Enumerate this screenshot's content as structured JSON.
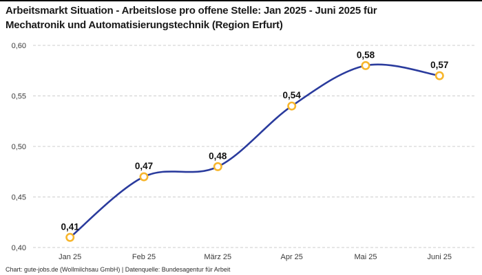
{
  "page": {
    "title_line1": "Arbeitsmarkt Situation - Arbeitslose pro offene Stelle: Jan 2025 - Juni 2025 für",
    "title_line2": "Mechatronik und Automatisierungstechnik (Region Erfurt)",
    "footer": "Chart: gute-jobs.de (Wollmilchsau GmbH) | Datenquelle: Bundesagentur für Arbeit"
  },
  "chart_data": {
    "type": "line",
    "title": "Arbeitsmarkt Situation - Arbeitslose pro offene Stelle: Jan 2025 - Juni 2025 für Mechatronik und Automatisierungstechnik (Region Erfurt)",
    "categories": [
      "Jan 25",
      "Feb 25",
      "März 25",
      "Apr 25",
      "Mai 25",
      "Juni 25"
    ],
    "values": [
      0.41,
      0.47,
      0.48,
      0.54,
      0.58,
      0.57
    ],
    "value_labels": [
      "0,41",
      "0,47",
      "0,48",
      "0,54",
      "0,58",
      "0,57"
    ],
    "y_ticks": [
      {
        "value": 0.6,
        "label": "0,60"
      },
      {
        "value": 0.55,
        "label": "0,55"
      },
      {
        "value": 0.5,
        "label": "0,50"
      },
      {
        "value": 0.45,
        "label": "0,45"
      },
      {
        "value": 0.4,
        "label": "0,40"
      }
    ],
    "ylim": [
      0.4,
      0.6
    ],
    "xlabel": "",
    "ylabel": "",
    "grid": "horizontal-dashed",
    "legend": "none",
    "colors": {
      "line": "#2a3b9d",
      "marker_stroke": "#f7b62c",
      "marker_fill": "#ffffff",
      "grid": "#cccccc",
      "value_text": "#111111",
      "axis_text": "#3a3a3a"
    }
  }
}
